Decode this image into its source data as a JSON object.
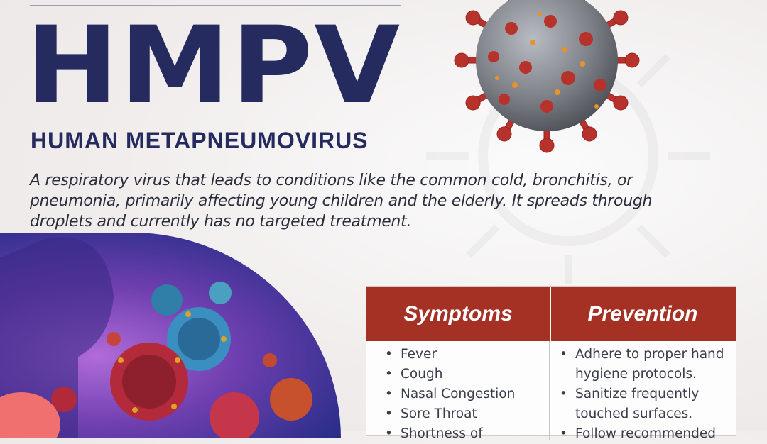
{
  "header": {
    "title": "HMPV",
    "subtitle": "HUMAN METAPNEUMOVIRUS"
  },
  "description": "A respiratory virus that leads to conditions like the common cold, bronchitis, or pneumonia, primarily affecting young children and the elderly. It spreads through droplets and currently has no targeted treatment.",
  "table": {
    "symptoms_header": "Symptoms",
    "prevention_header": "Prevention",
    "symptoms": [
      "Fever",
      "Cough",
      "Nasal Congestion",
      "Sore Throat",
      "Shortness of"
    ],
    "prevention": [
      "Adhere to proper hand hygiene protocols.",
      "Sanitize frequently touched surfaces.",
      "Follow recommended"
    ]
  },
  "colors": {
    "title": "#262b5f",
    "table_header": "#a53024",
    "virus_red": "#b8322c",
    "virus_gray": "#7e8088"
  },
  "images": {
    "main_virus": "coronavirus-style-virus-illustration",
    "illustration": "human-silhouette-with-virus-particles"
  }
}
